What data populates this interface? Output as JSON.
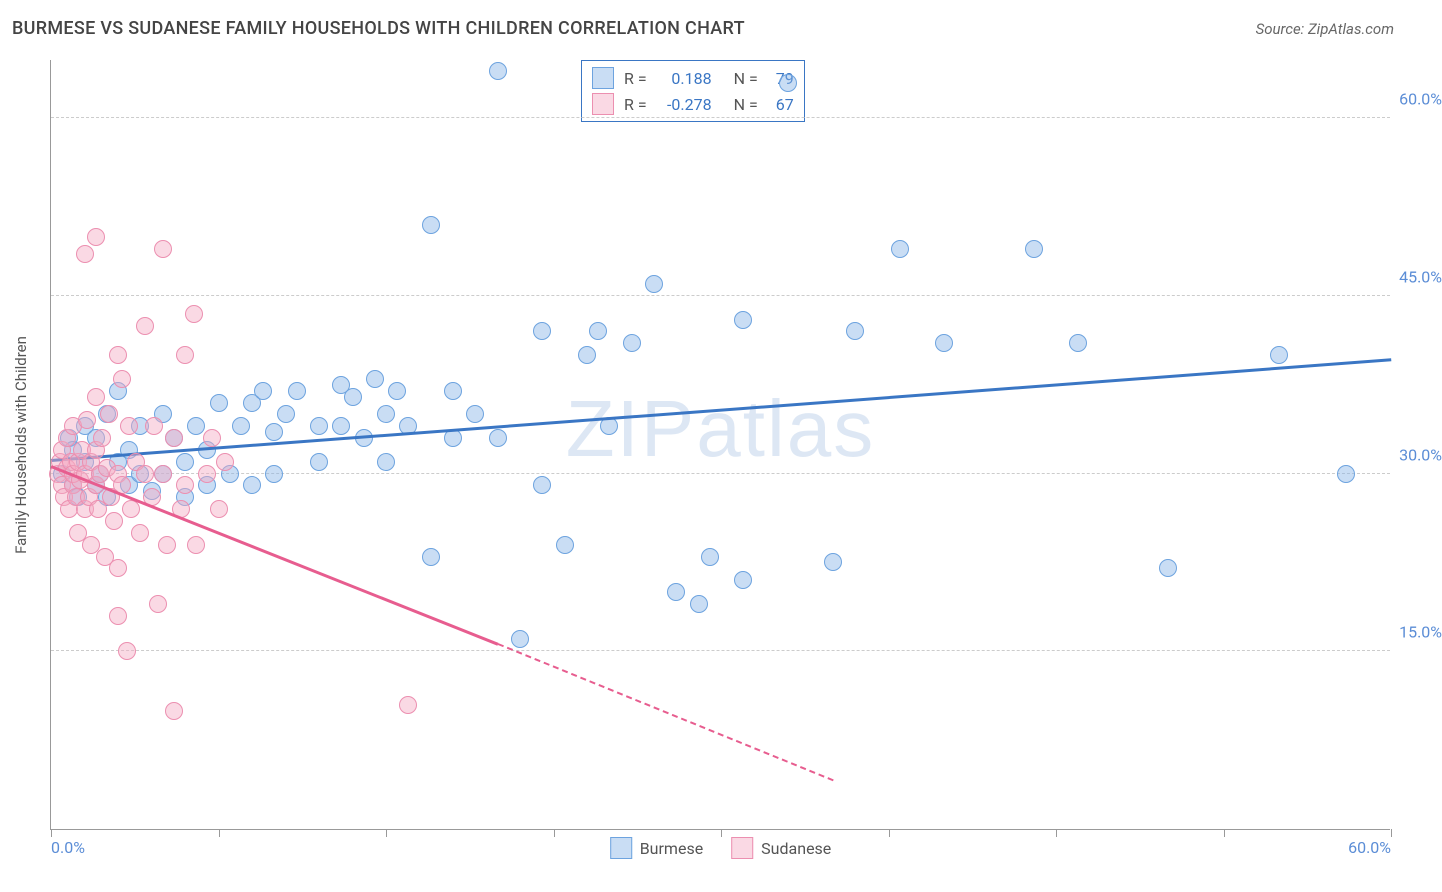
{
  "title": "BURMESE VS SUDANESE FAMILY HOUSEHOLDS WITH CHILDREN CORRELATION CHART",
  "source": "Source: ZipAtlas.com",
  "watermark": "ZIPatlas",
  "chart": {
    "type": "scatter",
    "background_color": "#ffffff",
    "grid_color": "#cccccc",
    "axis_color": "#999999",
    "xlim": [
      0,
      60
    ],
    "ylim": [
      0,
      65
    ],
    "xticks": [
      0,
      7.5,
      15,
      22.5,
      30,
      37.5,
      45,
      52.5,
      60
    ],
    "xtick_labels": {
      "0": "0.0%",
      "60": "60.0%"
    },
    "yticks": [
      15,
      30,
      45,
      60
    ],
    "ytick_labels": {
      "15": "15.0%",
      "30": "30.0%",
      "45": "45.0%",
      "60": "60.0%"
    },
    "ylabel": "Family Households with Children",
    "label_fontsize": 15,
    "tick_fontsize": 16,
    "tick_label_color": "#5b8dd6",
    "marker_size": 18,
    "marker_border_width": 1.5,
    "trend_line_width": 3
  },
  "series": [
    {
      "name": "Burmese",
      "fill_color": "rgba(135,180,230,0.45)",
      "stroke_color": "#6da3df",
      "line_color": "#3a76c4",
      "R": "0.188",
      "N": "79",
      "trend": {
        "x1": 0,
        "y1": 31,
        "x2": 60,
        "y2": 39.5,
        "dashed": false
      },
      "points": [
        [
          0.5,
          30
        ],
        [
          0.8,
          33
        ],
        [
          1,
          29
        ],
        [
          1,
          32
        ],
        [
          1.2,
          28
        ],
        [
          1.5,
          31
        ],
        [
          1.5,
          34
        ],
        [
          2,
          29
        ],
        [
          2,
          33
        ],
        [
          2.2,
          30
        ],
        [
          2.5,
          28
        ],
        [
          2.5,
          35
        ],
        [
          3,
          31
        ],
        [
          3,
          37
        ],
        [
          3.5,
          29
        ],
        [
          3.5,
          32
        ],
        [
          4,
          30
        ],
        [
          4,
          34
        ],
        [
          4.5,
          28.5
        ],
        [
          5,
          35
        ],
        [
          5,
          30
        ],
        [
          5.5,
          33
        ],
        [
          6,
          31
        ],
        [
          6.5,
          34
        ],
        [
          7,
          29
        ],
        [
          7,
          32
        ],
        [
          7.5,
          36
        ],
        [
          8,
          30
        ],
        [
          8.5,
          34
        ],
        [
          9,
          29
        ],
        [
          9,
          36
        ],
        [
          9.5,
          37
        ],
        [
          10,
          33.5
        ],
        [
          10,
          30
        ],
        [
          10.5,
          35
        ],
        [
          11,
          37
        ],
        [
          12,
          34
        ],
        [
          12,
          31
        ],
        [
          13,
          37.5
        ],
        [
          13,
          34
        ],
        [
          13.5,
          36.5
        ],
        [
          14,
          33
        ],
        [
          14.5,
          38
        ],
        [
          15,
          35
        ],
        [
          15,
          31
        ],
        [
          15.5,
          37
        ],
        [
          16,
          34
        ],
        [
          17,
          51
        ],
        [
          17,
          23
        ],
        [
          18,
          37
        ],
        [
          18,
          33
        ],
        [
          19,
          35
        ],
        [
          20,
          64
        ],
        [
          20,
          33
        ],
        [
          21,
          16
        ],
        [
          22,
          42
        ],
        [
          23,
          24
        ],
        [
          24,
          40
        ],
        [
          24.5,
          42
        ],
        [
          25,
          34
        ],
        [
          26,
          41
        ],
        [
          27,
          46
        ],
        [
          28,
          20
        ],
        [
          29,
          19
        ],
        [
          29.5,
          23
        ],
        [
          31,
          21
        ],
        [
          31,
          43
        ],
        [
          33,
          63
        ],
        [
          35,
          22.5
        ],
        [
          36,
          42
        ],
        [
          38,
          49
        ],
        [
          40,
          41
        ],
        [
          44,
          49
        ],
        [
          46,
          41
        ],
        [
          50,
          22
        ],
        [
          55,
          40
        ],
        [
          58,
          30
        ],
        [
          22,
          29
        ],
        [
          6,
          28
        ]
      ]
    },
    {
      "name": "Sudanese",
      "fill_color": "rgba(245,170,195,0.45)",
      "stroke_color": "#ec8fb0",
      "line_color": "#e75d8f",
      "R": "-0.278",
      "N": "67",
      "trend": {
        "x1": 0,
        "y1": 30.5,
        "x2": 20,
        "y2": 15.5,
        "dashed": false
      },
      "trend_extend": {
        "x1": 20,
        "y1": 15.5,
        "x2": 35,
        "y2": 4
      },
      "points": [
        [
          0.3,
          30
        ],
        [
          0.4,
          31
        ],
        [
          0.5,
          29
        ],
        [
          0.5,
          32
        ],
        [
          0.6,
          28
        ],
        [
          0.7,
          30.5
        ],
        [
          0.7,
          33
        ],
        [
          0.8,
          27
        ],
        [
          0.9,
          31
        ],
        [
          1,
          29
        ],
        [
          1,
          30
        ],
        [
          1,
          34
        ],
        [
          1.1,
          28
        ],
        [
          1.2,
          31
        ],
        [
          1.2,
          25
        ],
        [
          1.3,
          29.5
        ],
        [
          1.4,
          32
        ],
        [
          1.5,
          27
        ],
        [
          1.5,
          30
        ],
        [
          1.6,
          34.5
        ],
        [
          1.7,
          28
        ],
        [
          1.8,
          31
        ],
        [
          1.8,
          24
        ],
        [
          2,
          29
        ],
        [
          2,
          32
        ],
        [
          2,
          36.5
        ],
        [
          2.1,
          27
        ],
        [
          2.2,
          30
        ],
        [
          2.3,
          33
        ],
        [
          2.4,
          23
        ],
        [
          2.5,
          30.5
        ],
        [
          2.6,
          35
        ],
        [
          2.8,
          26
        ],
        [
          3,
          30
        ],
        [
          3,
          40
        ],
        [
          3,
          22
        ],
        [
          3.2,
          29
        ],
        [
          3.4,
          15
        ],
        [
          3.5,
          34
        ],
        [
          3.6,
          27
        ],
        [
          3.8,
          31
        ],
        [
          4,
          25
        ],
        [
          4.2,
          30
        ],
        [
          4.2,
          42.5
        ],
        [
          4.5,
          28
        ],
        [
          4.8,
          19
        ],
        [
          5,
          30
        ],
        [
          5,
          49
        ],
        [
          5.2,
          24
        ],
        [
          5.5,
          33
        ],
        [
          5.8,
          27
        ],
        [
          6,
          40
        ],
        [
          6,
          29
        ],
        [
          6.4,
          43.5
        ],
        [
          6.5,
          24
        ],
        [
          7,
          30
        ],
        [
          7.2,
          33
        ],
        [
          7.5,
          27
        ],
        [
          1.5,
          48.5
        ],
        [
          2,
          50
        ],
        [
          3.2,
          38
        ],
        [
          5.5,
          10
        ],
        [
          16,
          10.5
        ],
        [
          3,
          18
        ],
        [
          7.8,
          31
        ],
        [
          4.6,
          34
        ],
        [
          2.7,
          28
        ]
      ]
    }
  ],
  "legend_top": {
    "R_label": "R =",
    "N_label": "N ="
  },
  "legend_bottom": [
    {
      "label": "Burmese",
      "series": 0
    },
    {
      "label": "Sudanese",
      "series": 1
    }
  ]
}
